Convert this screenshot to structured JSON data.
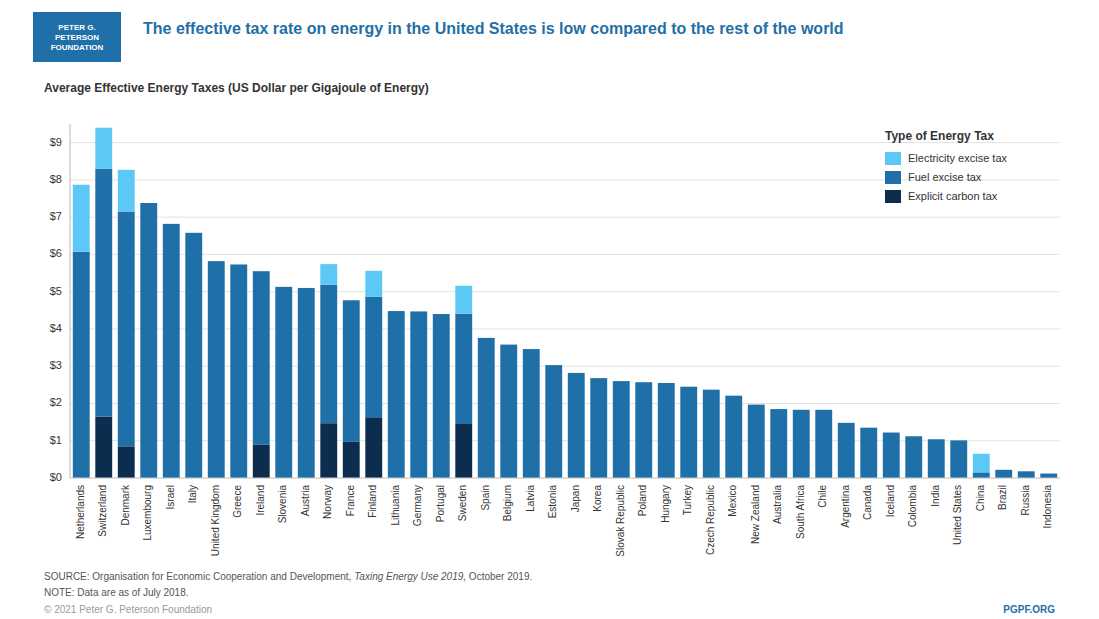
{
  "chart_data": {
    "type": "bar",
    "stacked": true,
    "title": "The effective tax rate on energy in the United States is low compared to the rest of the world",
    "subtitle": "Average Effective Energy Taxes (US Dollar per Gigajoule of Energy)",
    "categories": [
      "Netherlands",
      "Switzerland",
      "Denmark",
      "Luxembourg",
      "Israel",
      "Italy",
      "United Kingdom",
      "Greece",
      "Ireland",
      "Slovenia",
      "Austria",
      "Norway",
      "France",
      "Finland",
      "Lithuania",
      "Germany",
      "Portugal",
      "Sweden",
      "Spain",
      "Belgium",
      "Latvia",
      "Estonia",
      "Japan",
      "Korea",
      "Slovak Republic",
      "Poland",
      "Hungary",
      "Turkey",
      "Czech Republic",
      "Mexico",
      "New Zealand",
      "Australia",
      "South Africa",
      "Chile",
      "Argentina",
      "Canada",
      "Iceland",
      "Colombia",
      "India",
      "United States",
      "China",
      "Brazil",
      "Russia",
      "Indonesia"
    ],
    "series": [
      {
        "name": "Explicit carbon tax",
        "color": "#0D2D4E",
        "values": [
          0.0,
          1.65,
          0.85,
          0.0,
          0.0,
          0.0,
          0.0,
          0.0,
          0.9,
          0.0,
          0.0,
          1.47,
          0.97,
          1.63,
          0.0,
          0.0,
          0.0,
          1.45,
          0.0,
          0.0,
          0.0,
          0.0,
          0.0,
          0.0,
          0.0,
          0.0,
          0.0,
          0.0,
          0.0,
          0.0,
          0.0,
          0.0,
          0.0,
          0.0,
          0.0,
          0.0,
          0.0,
          0.0,
          0.0,
          0.0,
          0.0,
          0.0,
          0.0,
          0.0
        ]
      },
      {
        "name": "Fuel excise tax",
        "color": "#1F6FA8",
        "values": [
          6.07,
          6.65,
          6.3,
          7.38,
          6.82,
          6.58,
          5.82,
          5.73,
          4.65,
          5.13,
          5.1,
          3.72,
          3.8,
          3.23,
          4.48,
          4.47,
          4.4,
          2.96,
          3.76,
          3.58,
          3.46,
          3.03,
          2.82,
          2.68,
          2.6,
          2.57,
          2.55,
          2.45,
          2.37,
          2.21,
          1.97,
          1.85,
          1.83,
          1.83,
          1.48,
          1.35,
          1.22,
          1.12,
          1.04,
          1.01,
          0.15,
          0.22,
          0.18,
          0.12
        ]
      },
      {
        "name": "Electricity excise tax",
        "color": "#5BC8F5",
        "values": [
          1.8,
          1.1,
          1.12,
          0.0,
          0.0,
          0.0,
          0.0,
          0.0,
          0.0,
          0.0,
          0.0,
          0.55,
          0.0,
          0.7,
          0.0,
          0.0,
          0.0,
          0.75,
          0.0,
          0.0,
          0.0,
          0.0,
          0.0,
          0.0,
          0.0,
          0.0,
          0.0,
          0.0,
          0.0,
          0.0,
          0.0,
          0.0,
          0.0,
          0.0,
          0.0,
          0.0,
          0.0,
          0.0,
          0.0,
          0.0,
          0.5,
          0.0,
          0.0,
          0.0
        ]
      }
    ],
    "ylim": [
      0,
      9.5
    ],
    "yticks": [
      {
        "value": 0,
        "label": "$0"
      },
      {
        "value": 1,
        "label": "$1"
      },
      {
        "value": 2,
        "label": "$2"
      },
      {
        "value": 3,
        "label": "$3"
      },
      {
        "value": 4,
        "label": "$4"
      },
      {
        "value": 5,
        "label": "$5"
      },
      {
        "value": 6,
        "label": "$6"
      },
      {
        "value": 7,
        "label": "$7"
      },
      {
        "value": 8,
        "label": "$8"
      },
      {
        "value": 9,
        "label": "$9"
      }
    ],
    "grid": true,
    "legend": "upper right",
    "annotations": [
      "Type of Energy Tax",
      "PETER G.\nPETERSON\nFOUNDATION",
      "SOURCE: Organisation for Economic Cooperation and Development, ",
      "Taxing Energy Use 2019",
      ", October 2019.",
      "NOTE: Data are as of July 2018.",
      "© 2021 Peter G. Peterson Foundation",
      "PGPF.ORG"
    ]
  }
}
